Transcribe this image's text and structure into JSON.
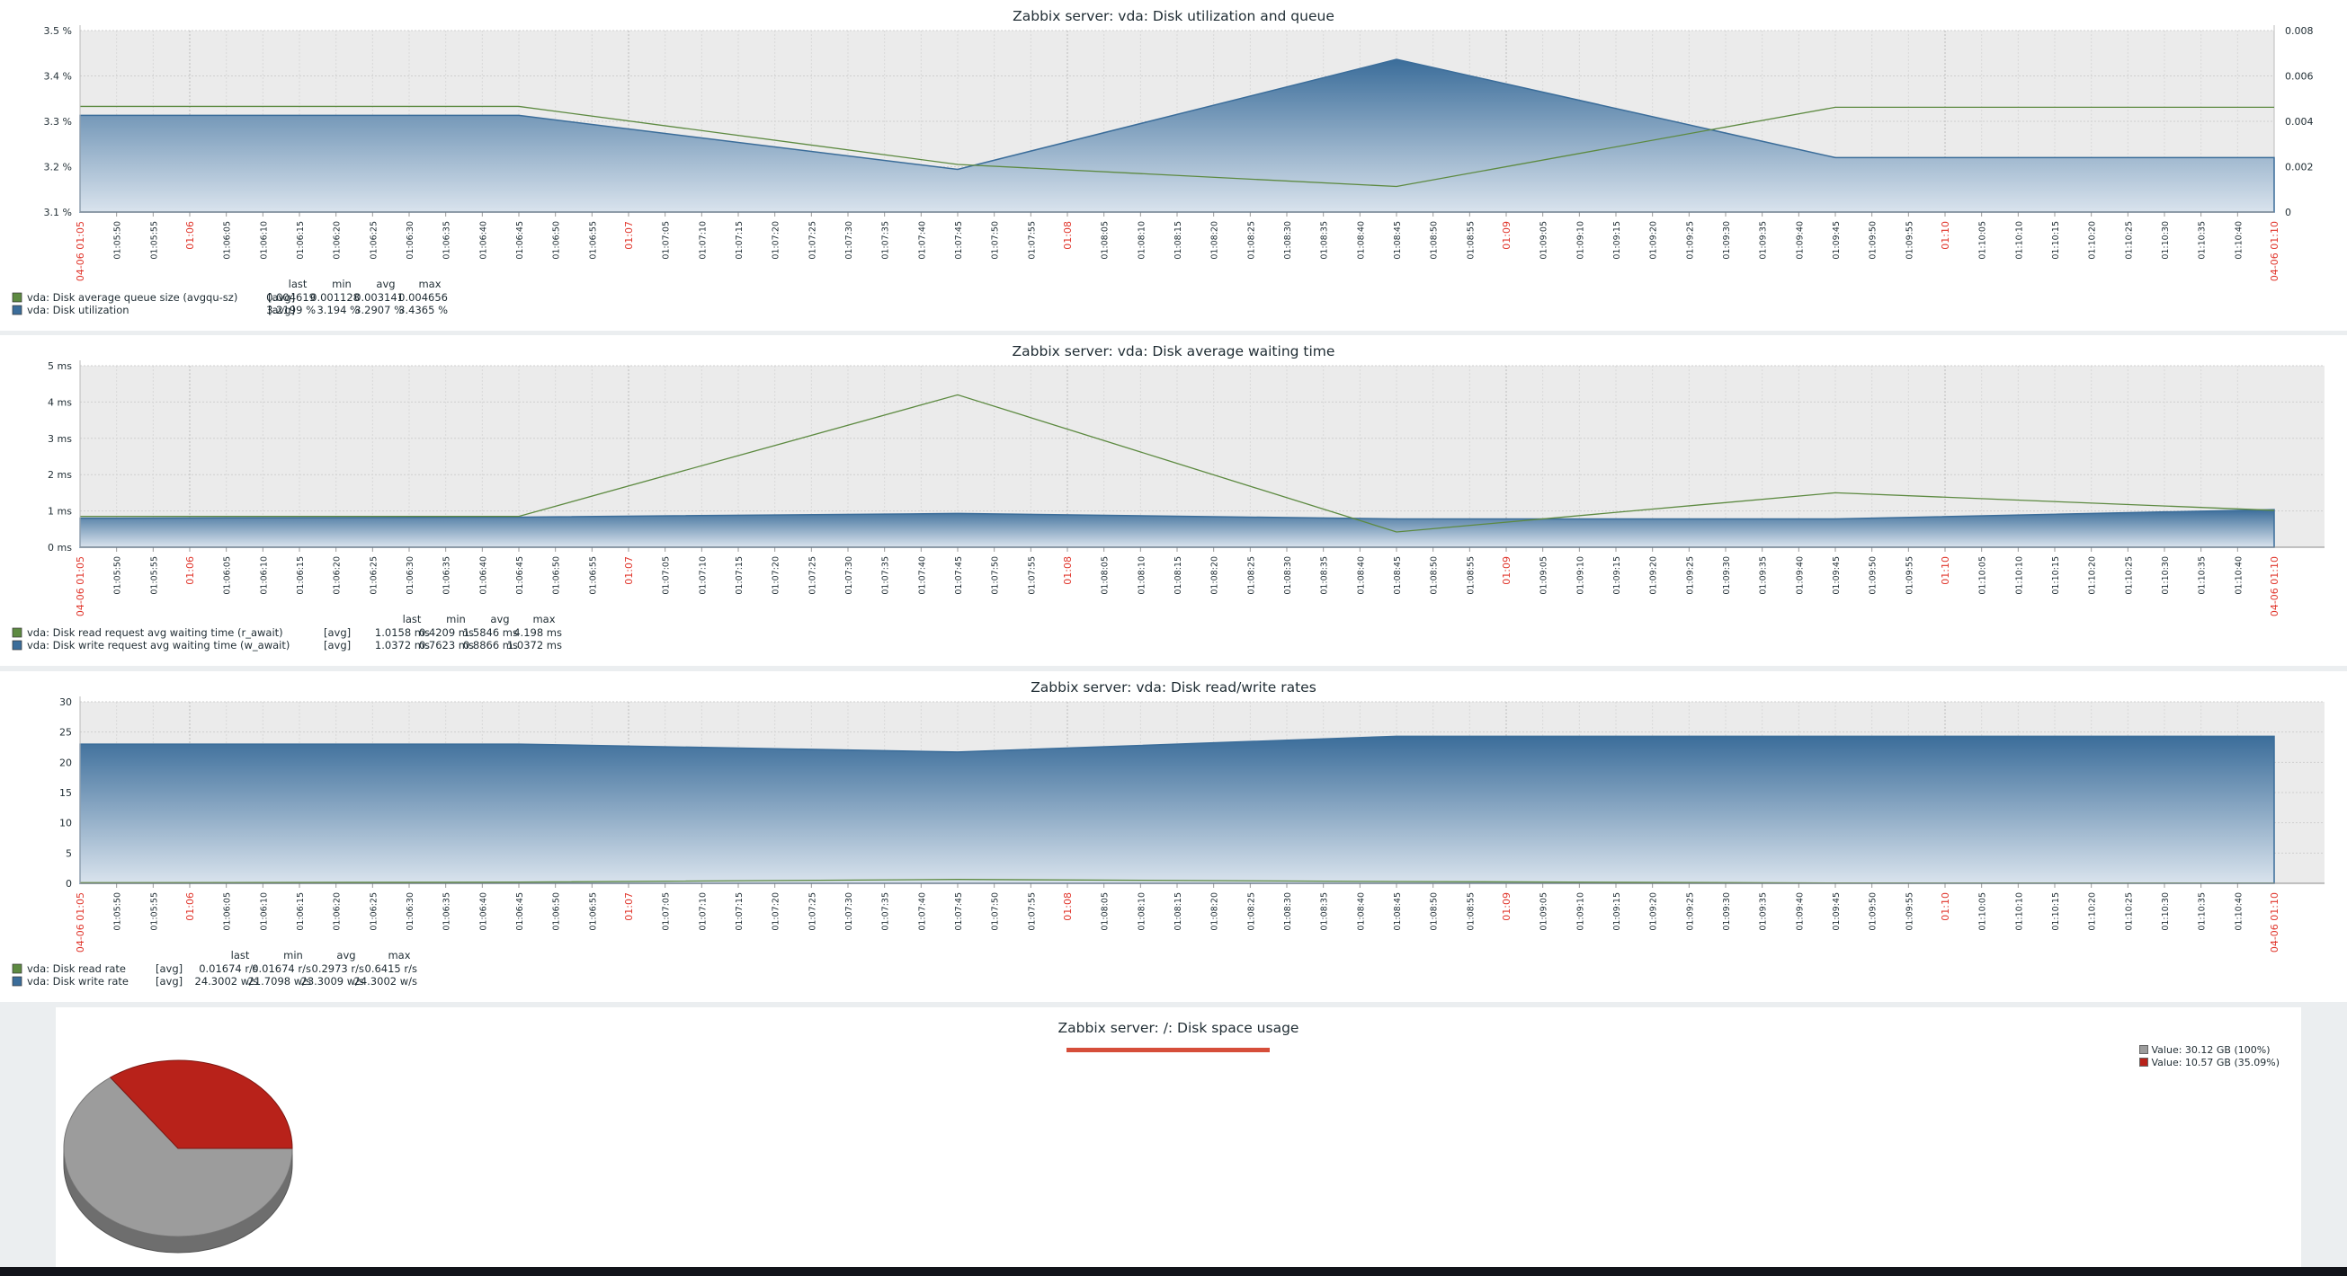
{
  "time_axis": {
    "start_label": "04-06 01:05",
    "end_label": "04-06 01:10",
    "hour_marks": [
      "01:06",
      "01:07",
      "01:08",
      "01:09",
      "01:10"
    ],
    "minor_ticks": [
      "01:05:50",
      "01:05:55",
      "01:06:05",
      "01:06:10",
      "01:06:15",
      "01:06:20",
      "01:06:25",
      "01:06:30",
      "01:06:35",
      "01:06:40",
      "01:06:45",
      "01:06:50",
      "01:06:55",
      "01:07:05",
      "01:07:10",
      "01:07:15",
      "01:07:20",
      "01:07:25",
      "01:07:30",
      "01:07:35",
      "01:07:40",
      "01:07:45",
      "01:07:50",
      "01:07:55",
      "01:08:05",
      "01:08:10",
      "01:08:15",
      "01:08:20",
      "01:08:25",
      "01:08:30",
      "01:08:35",
      "01:08:40",
      "01:08:45",
      "01:08:50",
      "01:08:55",
      "01:09:05",
      "01:09:10",
      "01:09:15",
      "01:09:20",
      "01:09:25",
      "01:09:30",
      "01:09:35",
      "01:09:40",
      "01:09:45",
      "01:09:50",
      "01:09:55",
      "01:10:05",
      "01:10:10",
      "01:10:15",
      "01:10:20",
      "01:10:25",
      "01:10:30",
      "01:10:35",
      "01:10:40"
    ]
  },
  "legend_headers": [
    "last",
    "min",
    "avg",
    "max"
  ],
  "colors": {
    "title_underline": "#d64e3a",
    "area_top": "#3b6d9a",
    "area_bottom": "#d9e3ed",
    "line_green": "#5d8a41",
    "plot_bg": "#ebebeb",
    "hour_label": "#e0352b",
    "pie_gray": "#9c9c9c",
    "pie_red": "#b8221a"
  },
  "graphs": [
    {
      "id": "util",
      "title": "Zabbix server: vda: Disk utilization and queue",
      "left_ticks": [
        "3.5 %",
        "3.4 %",
        "3.3 %",
        "3.2 %",
        "3.1 %"
      ],
      "right_ticks": [
        "0.008",
        "0.006",
        "0.004",
        "0.002",
        "0"
      ],
      "legend": [
        {
          "color": "#5d8a41",
          "name": "vda: Disk average queue size (avgqu-sz)",
          "func": "[avg]",
          "last": "0.004619",
          "min": "0.001128",
          "avg": "0.003141",
          "max": "0.004656"
        },
        {
          "color": "#3b6d9a",
          "name": "vda: Disk utilization",
          "func": "[avg]",
          "last": "3.2199 %",
          "min": "3.194 %",
          "avg": "3.2907 %",
          "max": "3.4365 %"
        }
      ]
    },
    {
      "id": "wait",
      "title": "Zabbix server: vda: Disk average waiting time",
      "left_ticks": [
        "5 ms",
        "4 ms",
        "3 ms",
        "2 ms",
        "1 ms",
        "0 ms"
      ],
      "right_ticks": [],
      "legend": [
        {
          "color": "#5d8a41",
          "name": "vda: Disk read request avg waiting time (r_await)",
          "func": "[avg]",
          "last": "1.0158 ms",
          "min": "0.4209 ms",
          "avg": "1.5846 ms",
          "max": "4.198 ms"
        },
        {
          "color": "#3b6d9a",
          "name": "vda: Disk write request avg waiting time (w_await)",
          "func": "[avg]",
          "last": "1.0372 ms",
          "min": "0.7623 ms",
          "avg": "0.8866 ms",
          "max": "1.0372 ms"
        }
      ]
    },
    {
      "id": "rate",
      "title": "Zabbix server: vda: Disk read/write rates",
      "left_ticks": [
        "30",
        "25",
        "20",
        "15",
        "10",
        "5",
        "0"
      ],
      "right_ticks": [],
      "legend": [
        {
          "color": "#5d8a41",
          "name": "vda: Disk read rate",
          "func": "[avg]",
          "last": "0.01674 r/s",
          "min": "0.01674 r/s",
          "avg": "0.2973 r/s",
          "max": "0.6415 r/s"
        },
        {
          "color": "#3b6d9a",
          "name": "vda: Disk write rate",
          "func": "[avg]",
          "last": "24.3002 w/s",
          "min": "21.7098 w/s",
          "avg": "23.3009 w/s",
          "max": "24.3002 w/s"
        }
      ]
    }
  ],
  "pie": {
    "title": "Zabbix server: /: Disk space usage",
    "legend": [
      {
        "label": "Value: 30.12 GB (100%)",
        "color": "#9c9c9c"
      },
      {
        "label": "Value: 10.57 GB (35.09%)",
        "color": "#b8221a"
      }
    ]
  },
  "chart_data": [
    {
      "type": "area",
      "title": "Zabbix server: vda: Disk utilization and queue",
      "x": [
        "01:05:45",
        "01:06:45",
        "01:07:45",
        "01:08:45",
        "01:09:45",
        "01:10:45"
      ],
      "series": [
        {
          "name": "vda: Disk utilization",
          "axis": "left",
          "values": [
            3.313,
            3.313,
            3.194,
            3.4365,
            3.22,
            3.22
          ]
        },
        {
          "name": "vda: Disk average queue size (avgqu-sz)",
          "axis": "right",
          "type": "line",
          "values": [
            0.004656,
            0.004656,
            0.0021,
            0.001128,
            0.004619,
            0.004619
          ]
        }
      ],
      "ylim_left": [
        3.1,
        3.5
      ],
      "ylim_right": [
        0,
        0.008
      ],
      "grid": true
    },
    {
      "type": "area",
      "title": "Zabbix server: vda: Disk average waiting time",
      "x": [
        "01:05:45",
        "01:06:45",
        "01:07:45",
        "01:08:45",
        "01:09:45",
        "01:10:45"
      ],
      "series": [
        {
          "name": "vda: Disk write request avg waiting time (w_await)",
          "values": [
            0.8,
            0.83,
            0.93,
            0.78,
            0.78,
            1.0372
          ]
        },
        {
          "name": "vda: Disk read request avg waiting time (r_await)",
          "type": "line",
          "values": [
            0.85,
            0.85,
            4.198,
            0.4209,
            1.5,
            1.0158
          ]
        }
      ],
      "ylim": [
        0,
        5
      ],
      "grid": true
    },
    {
      "type": "area",
      "title": "Zabbix server: vda: Disk read/write rates",
      "x": [
        "01:05:45",
        "01:06:45",
        "01:07:45",
        "01:08:45",
        "01:09:45",
        "01:10:45"
      ],
      "series": [
        {
          "name": "vda: Disk write rate",
          "values": [
            23.0,
            23.0,
            21.7098,
            24.3,
            24.3002,
            24.3002
          ]
        },
        {
          "name": "vda: Disk read rate",
          "type": "line",
          "values": [
            0.1,
            0.2,
            0.6415,
            0.3,
            0.05,
            0.01674
          ]
        }
      ],
      "ylim": [
        0,
        30
      ],
      "grid": true
    },
    {
      "type": "pie",
      "title": "Zabbix server: /: Disk space usage",
      "slices": [
        {
          "label": "Value: 30.12 GB (100%)",
          "value": 30.12
        },
        {
          "label": "Value: 10.57 GB (35.09%)",
          "value": 10.57
        }
      ]
    }
  ]
}
